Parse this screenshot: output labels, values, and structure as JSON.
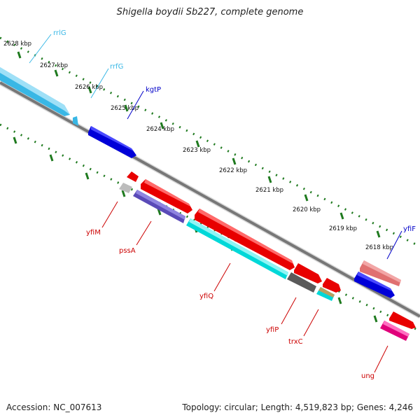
{
  "title": "Shigella boydii Sb227, complete genome",
  "accession": "Accession: NC_007613",
  "summary": "Topology: circular; Length: 4,519,823 bp; Genes: 4,246",
  "ticks": [
    "2628 kbp",
    "2627 kbp",
    "2626 kbp",
    "2625 kbp",
    "2624 kbp",
    "2623 kbp",
    "2622 kbp",
    "2621 kbp",
    "2620 kbp",
    "2619 kbp",
    "2618 kbp"
  ],
  "genes": [
    {
      "name": "rrlG",
      "color": "#3ab8e6",
      "label_color": "#3ab8e6"
    },
    {
      "name": "rrfG",
      "color": "#3ab8e6",
      "label_color": "#3ab8e6"
    },
    {
      "name": "kgtP",
      "color": "#0000e0",
      "label_color": "#0000c8"
    },
    {
      "name": "yfiM",
      "color": "#e00000",
      "label_color": "#cc0000"
    },
    {
      "name": "pssA",
      "color": "#6a5acd",
      "label_color": "#cc0000"
    },
    {
      "name": "yfiQ",
      "color": "#00e8e8",
      "label_color": "#cc0000"
    },
    {
      "name": "yfiP",
      "color": "#666666",
      "label_color": "#cc0000"
    },
    {
      "name": "trxC",
      "color": "#00e0e0",
      "label_color": "#cc0000"
    },
    {
      "name": "yfiF",
      "color": "#0000e0",
      "label_color": "#0000c8"
    },
    {
      "name": "ung",
      "color": "#ff1493",
      "label_color": "#cc0000"
    }
  ],
  "other_colors": {
    "red_cds": "#e80000",
    "pink_cds": "#e88080",
    "light_gray": "#bdbdbd",
    "tick_green": "#1f7a1f",
    "backbone": "#808080"
  }
}
